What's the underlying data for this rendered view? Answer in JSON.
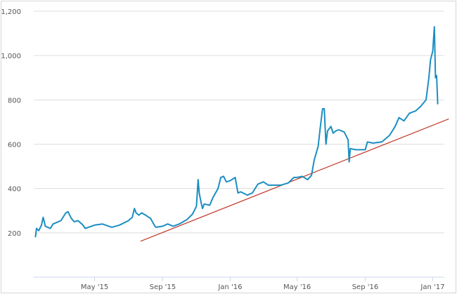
{
  "chart_data": {
    "type": "line",
    "title": "",
    "xlabel": "",
    "ylabel": "",
    "ylim": [
      0,
      1200
    ],
    "yticks": [
      200,
      400,
      600,
      800,
      1000,
      1200
    ],
    "ytick_labels": [
      "200",
      "400",
      "600",
      "800",
      "1,000",
      "1,200"
    ],
    "xticks": [
      "2015-05-01",
      "2015-09-01",
      "2016-01-01",
      "2016-05-01",
      "2016-09-01",
      "2017-01-01"
    ],
    "xtick_labels": [
      "May '15",
      "Sep '15",
      "Jan '16",
      "May '16",
      "Sep '16",
      "Jan '17"
    ],
    "xlim": [
      "2015-01-11",
      "2017-01-22"
    ],
    "grid": "horizontal",
    "colors": {
      "series": "#1b8ec2",
      "trendline": "#c0392b",
      "grid": "#dddddd"
    },
    "series": [
      {
        "points": [
          [
            "2015-01-14",
            180
          ],
          [
            "2015-01-16",
            220
          ],
          [
            "2015-01-20",
            210
          ],
          [
            "2015-01-25",
            235
          ],
          [
            "2015-01-28",
            270
          ],
          [
            "2015-02-01",
            230
          ],
          [
            "2015-02-05",
            225
          ],
          [
            "2015-02-10",
            220
          ],
          [
            "2015-02-15",
            240
          ],
          [
            "2015-02-20",
            245
          ],
          [
            "2015-03-01",
            255
          ],
          [
            "2015-03-10",
            290
          ],
          [
            "2015-03-14",
            295
          ],
          [
            "2015-03-20",
            265
          ],
          [
            "2015-03-25",
            250
          ],
          [
            "2015-04-01",
            255
          ],
          [
            "2015-04-10",
            235
          ],
          [
            "2015-04-14",
            220
          ],
          [
            "2015-04-20",
            225
          ],
          [
            "2015-05-01",
            235
          ],
          [
            "2015-05-15",
            240
          ],
          [
            "2015-06-01",
            225
          ],
          [
            "2015-06-15",
            235
          ],
          [
            "2015-07-01",
            255
          ],
          [
            "2015-07-08",
            270
          ],
          [
            "2015-07-12",
            310
          ],
          [
            "2015-07-15",
            290
          ],
          [
            "2015-07-20",
            280
          ],
          [
            "2015-07-25",
            290
          ],
          [
            "2015-08-01",
            280
          ],
          [
            "2015-08-10",
            265
          ],
          [
            "2015-08-18",
            230
          ],
          [
            "2015-08-20",
            225
          ],
          [
            "2015-09-01",
            230
          ],
          [
            "2015-09-10",
            240
          ],
          [
            "2015-09-20",
            230
          ],
          [
            "2015-10-01",
            240
          ],
          [
            "2015-10-15",
            260
          ],
          [
            "2015-10-25",
            285
          ],
          [
            "2015-11-01",
            320
          ],
          [
            "2015-11-04",
            440
          ],
          [
            "2015-11-06",
            380
          ],
          [
            "2015-11-10",
            330
          ],
          [
            "2015-11-12",
            310
          ],
          [
            "2015-11-15",
            330
          ],
          [
            "2015-11-25",
            325
          ],
          [
            "2015-12-01",
            360
          ],
          [
            "2015-12-10",
            400
          ],
          [
            "2015-12-15",
            450
          ],
          [
            "2015-12-20",
            455
          ],
          [
            "2015-12-25",
            430
          ],
          [
            "2016-01-01",
            435
          ],
          [
            "2016-01-10",
            450
          ],
          [
            "2016-01-15",
            380
          ],
          [
            "2016-01-20",
            385
          ],
          [
            "2016-02-01",
            370
          ],
          [
            "2016-02-10",
            380
          ],
          [
            "2016-02-20",
            420
          ],
          [
            "2016-03-01",
            430
          ],
          [
            "2016-03-10",
            415
          ],
          [
            "2016-04-01",
            415
          ],
          [
            "2016-04-15",
            425
          ],
          [
            "2016-04-25",
            450
          ],
          [
            "2016-05-01",
            450
          ],
          [
            "2016-05-10",
            455
          ],
          [
            "2016-05-20",
            440
          ],
          [
            "2016-05-27",
            460
          ],
          [
            "2016-06-01",
            530
          ],
          [
            "2016-06-08",
            590
          ],
          [
            "2016-06-12",
            680
          ],
          [
            "2016-06-16",
            760
          ],
          [
            "2016-06-19",
            760
          ],
          [
            "2016-06-22",
            600
          ],
          [
            "2016-06-25",
            660
          ],
          [
            "2016-07-01",
            680
          ],
          [
            "2016-07-05",
            650
          ],
          [
            "2016-07-10",
            660
          ],
          [
            "2016-07-15",
            665
          ],
          [
            "2016-07-25",
            655
          ],
          [
            "2016-08-01",
            620
          ],
          [
            "2016-08-03",
            520
          ],
          [
            "2016-08-05",
            580
          ],
          [
            "2016-08-15",
            575
          ],
          [
            "2016-09-01",
            575
          ],
          [
            "2016-09-05",
            610
          ],
          [
            "2016-09-15",
            605
          ],
          [
            "2016-10-01",
            610
          ],
          [
            "2016-10-15",
            640
          ],
          [
            "2016-10-25",
            680
          ],
          [
            "2016-11-01",
            720
          ],
          [
            "2016-11-10",
            705
          ],
          [
            "2016-11-20",
            740
          ],
          [
            "2016-12-01",
            750
          ],
          [
            "2016-12-10",
            770
          ],
          [
            "2016-12-20",
            800
          ],
          [
            "2016-12-25",
            900
          ],
          [
            "2016-12-28",
            980
          ],
          [
            "2017-01-01",
            1020
          ],
          [
            "2017-01-04",
            1130
          ],
          [
            "2017-01-06",
            900
          ],
          [
            "2017-01-08",
            910
          ],
          [
            "2017-01-10",
            780
          ]
        ]
      }
    ],
    "trendline": {
      "points": [
        [
          "2015-07-23",
          162
        ],
        [
          "2017-01-30",
          714
        ]
      ]
    }
  }
}
